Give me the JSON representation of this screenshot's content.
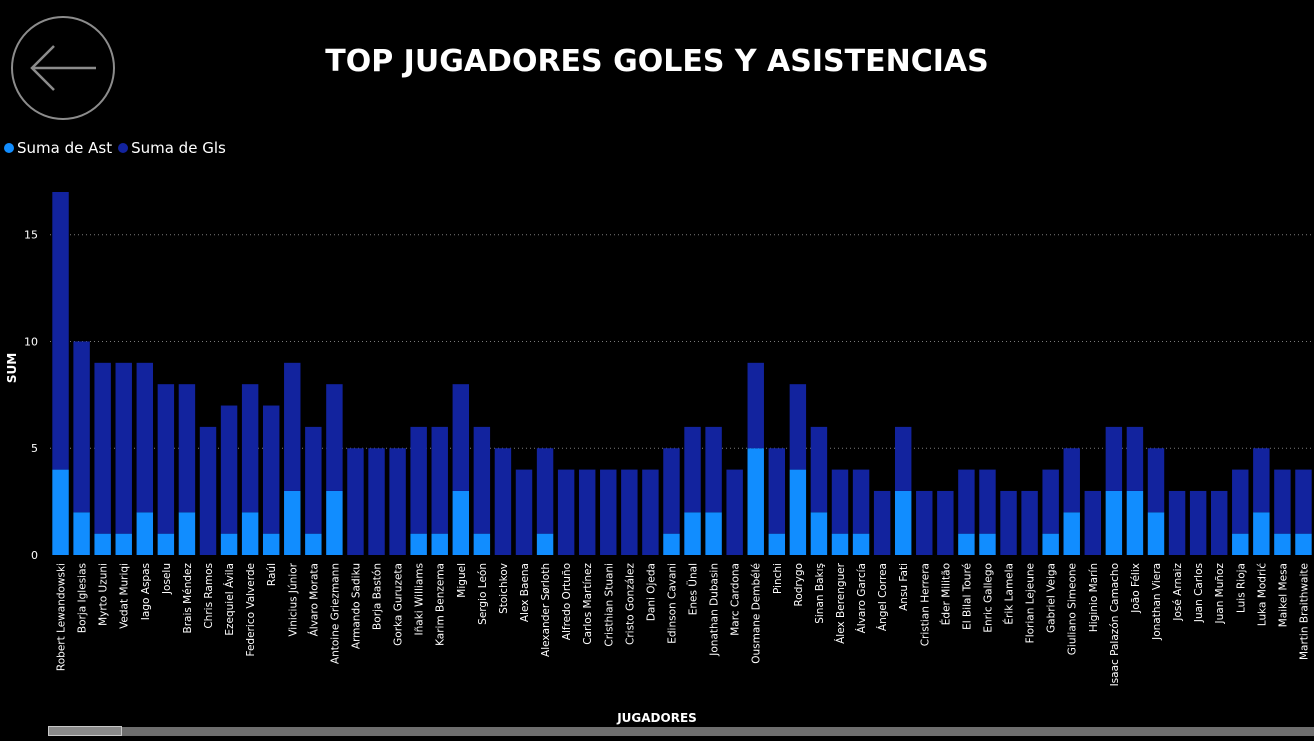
{
  "header": {
    "title": "TOP JUGADORES GOLES Y ASISTENCIAS"
  },
  "colors": {
    "ast": "#118DFF",
    "gls": "#12239E",
    "background": "#000000",
    "grid": "#7a7a7a"
  },
  "chart_data": {
    "type": "bar",
    "stacked": true,
    "xlabel": "JUGADORES",
    "ylabel": "SUM",
    "ylim": [
      0,
      17
    ],
    "yticks": [
      0,
      5,
      10,
      15
    ],
    "grid": "horizontal dotted",
    "legend_position": "top-left",
    "categories": [
      "Robert Lewandowski",
      "Borja Iglesias",
      "Myrto Uzuni",
      "Vedat Muriqi",
      "Iago Aspas",
      "Joselu",
      "Brais Méndez",
      "Chris Ramos",
      "Ezequiel Ávila",
      "Federico Valverde",
      "Raúl",
      "Vinicius Júnior",
      "Álvaro Morata",
      "Antoine Griezmann",
      "Armando Sadiku",
      "Borja Bastón",
      "Gorka Guruzeta",
      "Iñaki Williams",
      "Karim Benzema",
      "Miguel",
      "Sergio León",
      "Stoichkov",
      "Alex Baena",
      "Alexander Sørloth",
      "Alfredo Ortuño",
      "Carlos Martínez",
      "Cristhian Stuani",
      "Cristo González",
      "Dani Ojeda",
      "Edinson Cavani",
      "Enes Ünal",
      "Jonathan Dubasin",
      "Marc Cardona",
      "Ousmane Dembélé",
      "Pinchi",
      "Rodrygo",
      "Sinan Bakış",
      "Álex Berenguer",
      "Álvaro García",
      "Ángel Correa",
      "Ansu Fati",
      "Cristian Herrera",
      "Éder Militão",
      "El Bilal Touré",
      "Enric Gallego",
      "Érik Lamela",
      "Florian Lejeune",
      "Gabriel Veiga",
      "Giuliano Simeone",
      "Higinio Marín",
      "Isaac Palazón Camacho",
      "João Félix",
      "Jonathan Viera",
      "José Arnaiz",
      "Juan Carlos",
      "Juan Muñoz",
      "Luis Rioja",
      "Luka Modrić",
      "Maikel Mesa",
      "Martin Braithwaite"
    ],
    "series": [
      {
        "name": "Suma de Ast",
        "color": "#118DFF",
        "values": [
          4,
          2,
          1,
          1,
          2,
          1,
          2,
          0,
          1,
          2,
          1,
          3,
          1,
          3,
          0,
          0,
          0,
          1,
          1,
          3,
          1,
          0,
          0,
          1,
          0,
          0,
          0,
          0,
          0,
          1,
          2,
          2,
          0,
          5,
          1,
          4,
          2,
          1,
          1,
          0,
          3,
          0,
          0,
          1,
          1,
          0,
          0,
          1,
          2,
          0,
          3,
          3,
          2,
          0,
          0,
          0,
          1,
          2,
          1,
          1
        ]
      },
      {
        "name": "Suma de Gls",
        "color": "#12239E",
        "values": [
          13,
          8,
          8,
          8,
          7,
          7,
          6,
          6,
          6,
          6,
          6,
          6,
          5,
          5,
          5,
          5,
          5,
          5,
          5,
          5,
          5,
          5,
          4,
          4,
          4,
          4,
          4,
          4,
          4,
          4,
          4,
          4,
          4,
          4,
          4,
          4,
          4,
          3,
          3,
          3,
          3,
          3,
          3,
          3,
          3,
          3,
          3,
          3,
          3,
          3,
          3,
          3,
          3,
          3,
          3,
          3,
          3,
          3,
          3,
          3
        ]
      }
    ]
  }
}
